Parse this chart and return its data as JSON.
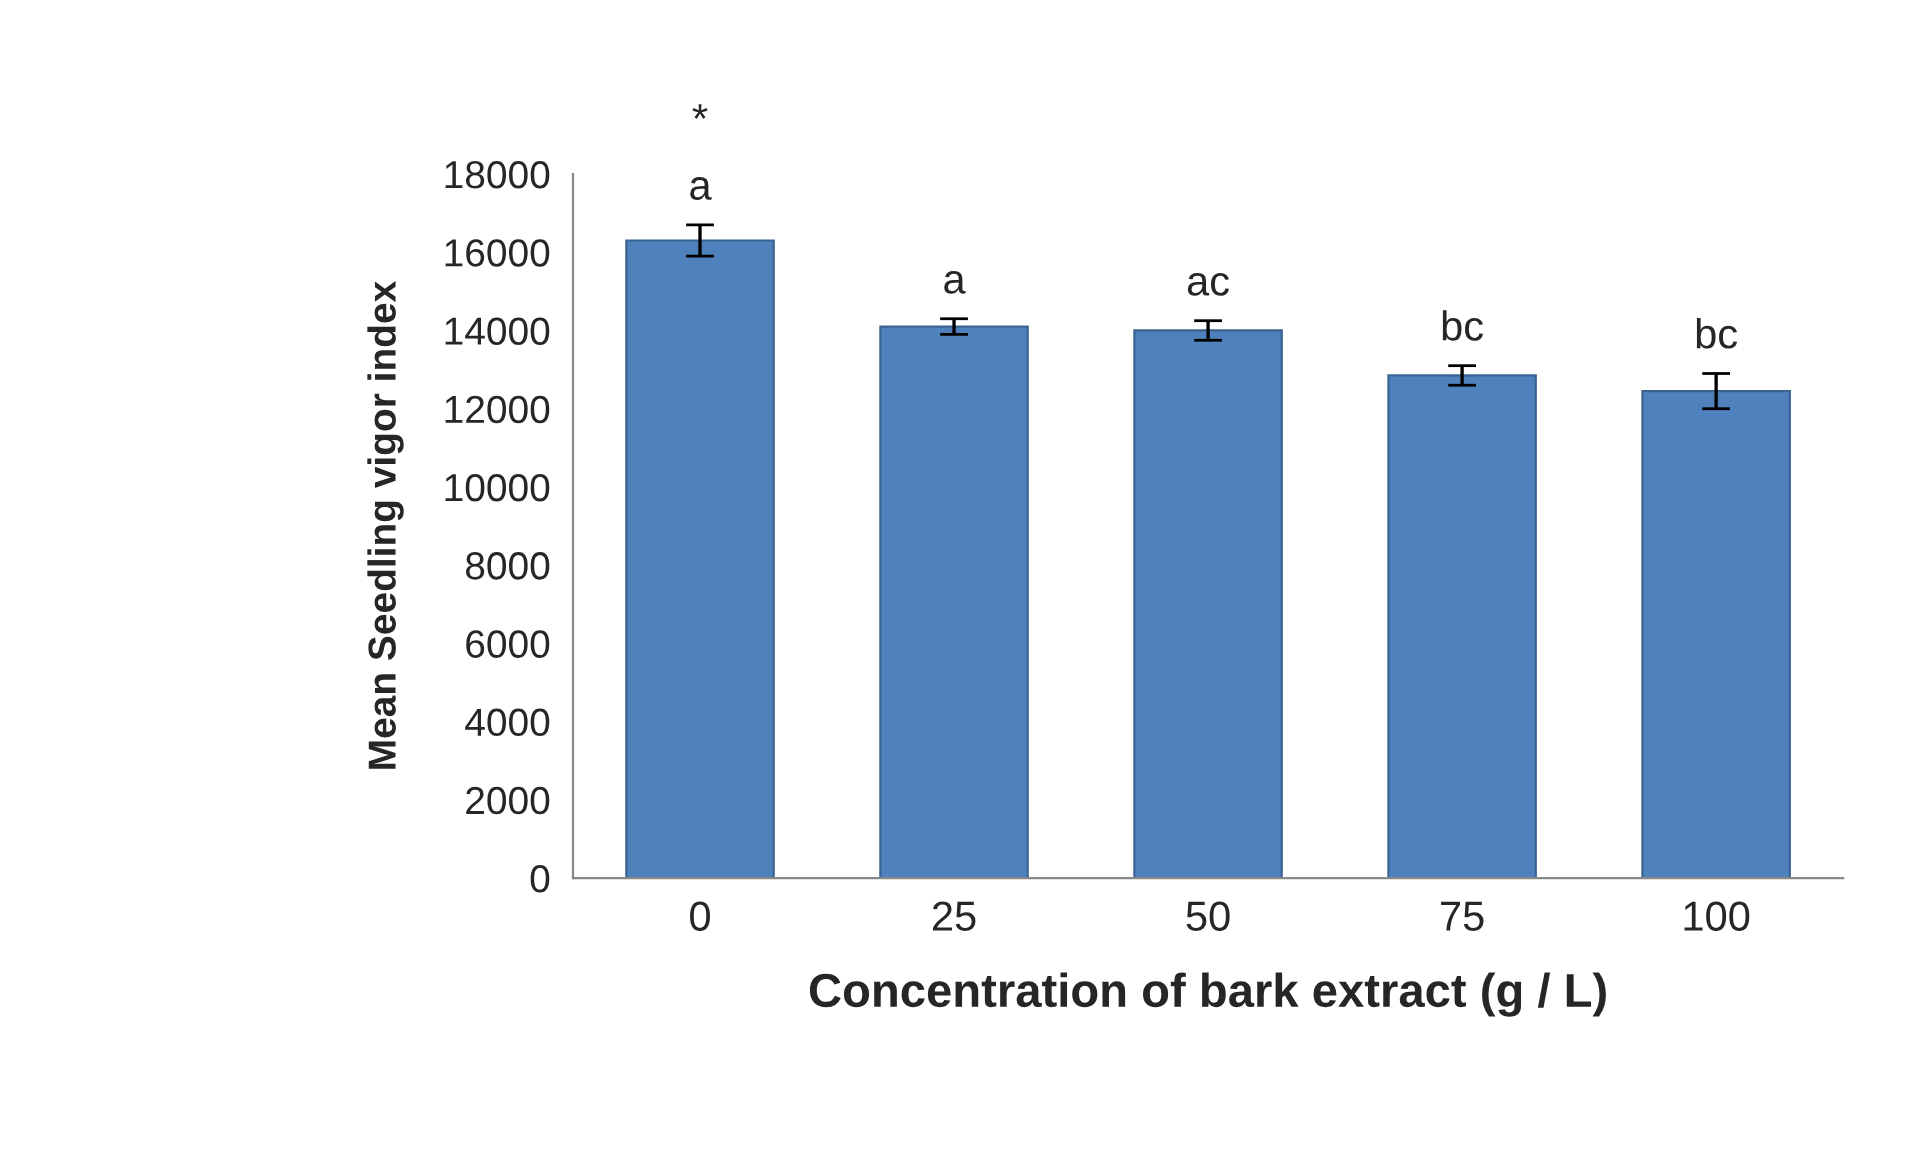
{
  "chart_data": {
    "type": "bar",
    "xlabel": "Concentration of bark extract (g / L)",
    "ylabel": "Mean Seedling vigor index",
    "categories": [
      "0",
      "25",
      "50",
      "75",
      "100"
    ],
    "values": [
      16300,
      14100,
      14000,
      12850,
      12450
    ],
    "errors": [
      400,
      200,
      250,
      250,
      450
    ],
    "color": "#4f81bd",
    "ylim": [
      0,
      18000
    ],
    "yticks": [
      0,
      2000,
      4000,
      6000,
      8000,
      10000,
      12000,
      14000,
      16000,
      18000
    ],
    "grid": false,
    "value_labels": [
      "a",
      "a",
      "ac",
      "bc",
      "bc"
    ],
    "annotations": [
      "*"
    ]
  }
}
